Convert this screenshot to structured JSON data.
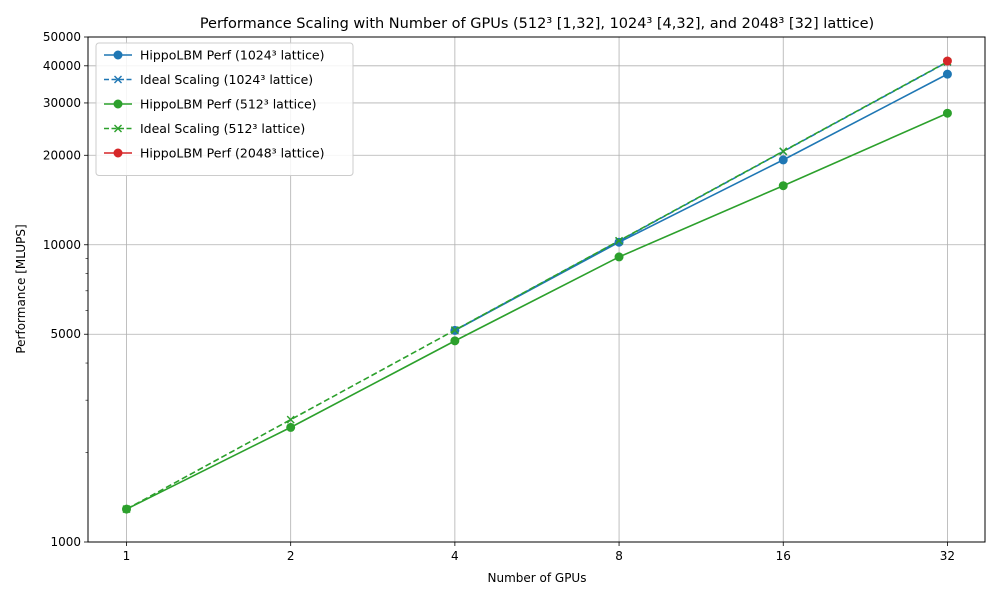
{
  "chart_data": {
    "type": "line",
    "title": "Performance Scaling with Number of GPUs (512³ [1,32], 1024³ [4,32], and 2048³ [32] lattice)",
    "xlabel": "Number of GPUs",
    "ylabel": "Performance [MLUPS]",
    "x_scale": "log2",
    "y_scale": "log",
    "xlim": [
      0.85,
      37.5
    ],
    "ylim": [
      1000,
      50000
    ],
    "x_ticks": [
      1,
      2,
      4,
      8,
      16,
      32
    ],
    "y_ticks": [
      1000,
      5000,
      10000,
      20000,
      30000,
      40000,
      50000
    ],
    "grid": true,
    "legend_position": "top-left",
    "series": [
      {
        "name": "HippoLBM Perf (1024³ lattice)",
        "color": "#1f77b4",
        "line_style": "solid",
        "marker": "circle",
        "x": [
          4,
          8,
          16,
          32
        ],
        "y": [
          5150,
          10200,
          19300,
          37500
        ]
      },
      {
        "name": "Ideal Scaling (1024³ lattice)",
        "color": "#1f77b4",
        "line_style": "dashed",
        "marker": "x",
        "x": [
          4,
          8,
          16,
          32
        ],
        "y": [
          5150,
          10300,
          20600,
          41200
        ]
      },
      {
        "name": "HippoLBM Perf (512³ lattice)",
        "color": "#2ca02c",
        "line_style": "solid",
        "marker": "circle",
        "x": [
          1,
          2,
          4,
          8,
          16,
          32
        ],
        "y": [
          1290,
          2430,
          4750,
          9100,
          15800,
          27700
        ]
      },
      {
        "name": "Ideal Scaling (512³ lattice)",
        "color": "#2ca02c",
        "line_style": "dashed",
        "marker": "x",
        "x": [
          1,
          2,
          4,
          8,
          16,
          32
        ],
        "y": [
          1290,
          2580,
          5160,
          10320,
          20640,
          41280
        ]
      },
      {
        "name": "HippoLBM Perf (2048³ lattice)",
        "color": "#d62728",
        "line_style": "solid",
        "marker": "circle",
        "x": [
          32
        ],
        "y": [
          41500
        ]
      }
    ]
  }
}
